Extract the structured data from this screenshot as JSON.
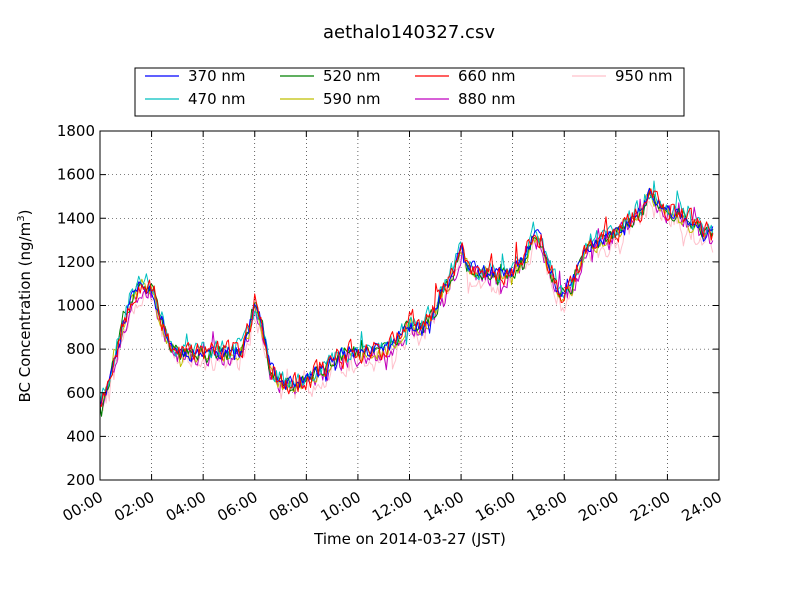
{
  "chart_data": {
    "type": "line",
    "title": "aethalo140327.csv",
    "xlabel": "Time on 2014-03-27 (JST)",
    "ylabel_main": "BC Concentration (ng/m",
    "ylabel_sup": "3",
    "ylabel_end": ")",
    "xlim": [
      0,
      24
    ],
    "ylim": [
      200,
      1800
    ],
    "x_ticks": [
      0,
      2,
      4,
      6,
      8,
      10,
      12,
      14,
      16,
      18,
      20,
      22,
      24
    ],
    "x_tick_labels": [
      "00:00",
      "02:00",
      "04:00",
      "06:00",
      "08:00",
      "10:00",
      "12:00",
      "14:00",
      "16:00",
      "18:00",
      "20:00",
      "22:00",
      "24:00"
    ],
    "y_ticks": [
      200,
      400,
      600,
      800,
      1000,
      1200,
      1400,
      1600,
      1800
    ],
    "y_tick_labels": [
      "200",
      "400",
      "600",
      "800",
      "1000",
      "1200",
      "1400",
      "1600",
      "1800"
    ],
    "grid": true,
    "legend_placement": "top-center",
    "series": [
      {
        "name": "370 nm",
        "color": "#0000ff",
        "offset": 0,
        "amp": 45,
        "seed": 11
      },
      {
        "name": "470 nm",
        "color": "#00bfbf",
        "offset": 15,
        "amp": 55,
        "seed": 23
      },
      {
        "name": "520 nm",
        "color": "#008000",
        "offset": -5,
        "amp": 45,
        "seed": 37
      },
      {
        "name": "590 nm",
        "color": "#bfbf00",
        "offset": -10,
        "amp": 45,
        "seed": 41
      },
      {
        "name": "660 nm",
        "color": "#ff0000",
        "offset": 5,
        "amp": 70,
        "seed": 53
      },
      {
        "name": "880 nm",
        "color": "#bf00bf",
        "offset": -20,
        "amp": 60,
        "seed": 67
      },
      {
        "name": "950 nm",
        "color": "#ffc0cb",
        "offset": -40,
        "amp": 75,
        "seed": 79
      }
    ],
    "trend": {
      "x": [
        0,
        0.3,
        0.8,
        1.2,
        1.6,
        2.0,
        2.3,
        2.7,
        3.0,
        3.5,
        4.0,
        4.5,
        5.0,
        5.5,
        5.8,
        6.0,
        6.3,
        6.6,
        7.0,
        7.5,
        8.0,
        8.5,
        9.0,
        9.5,
        10.0,
        10.5,
        11.0,
        11.5,
        12.0,
        12.5,
        13.0,
        13.3,
        13.6,
        14.0,
        14.3,
        14.7,
        15.0,
        15.5,
        16.0,
        16.5,
        16.8,
        17.1,
        17.5,
        17.8,
        18.0,
        18.3,
        18.6,
        19.0,
        19.5,
        20.0,
        20.5,
        21.0,
        21.3,
        21.6,
        22.0,
        22.5,
        23.0,
        23.5,
        24.0
      ],
      "y": [
        560,
        640,
        870,
        1040,
        1100,
        1080,
        960,
        830,
        790,
        780,
        790,
        790,
        780,
        800,
        900,
        1010,
        900,
        710,
        650,
        640,
        660,
        700,
        740,
        780,
        790,
        790,
        800,
        840,
        920,
        900,
        980,
        1080,
        1120,
        1260,
        1180,
        1150,
        1160,
        1140,
        1150,
        1210,
        1330,
        1300,
        1150,
        1060,
        1050,
        1090,
        1180,
        1280,
        1300,
        1330,
        1380,
        1440,
        1510,
        1470,
        1440,
        1420,
        1370,
        1340,
        1330
      ]
    }
  }
}
